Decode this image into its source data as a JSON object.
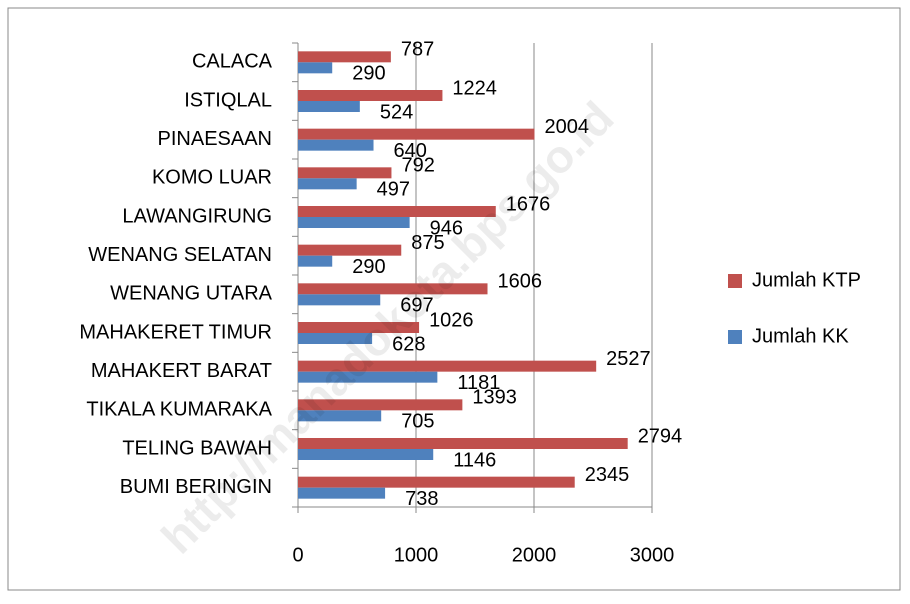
{
  "chart_data": {
    "type": "barh",
    "categories": [
      "CALACA",
      "ISTIQLAL",
      "PINAESAAN",
      "KOMO LUAR",
      "LAWANGIRUNG",
      "WENANG SELATAN",
      "WENANG UTARA",
      "MAHAKERET TIMUR",
      "MAHAKERT BARAT",
      "TIKALA KUMARAKA",
      "TELING BAWAH",
      "BUMI BERINGIN"
    ],
    "series": [
      {
        "name": "Jumlah KTP",
        "color": "#c0504d",
        "values": [
          787,
          1224,
          2004,
          792,
          1676,
          875,
          1606,
          1026,
          2527,
          1393,
          2794,
          2345
        ]
      },
      {
        "name": "Jumlah KK",
        "color": "#4f81bd",
        "values": [
          290,
          524,
          640,
          497,
          946,
          290,
          697,
          628,
          1181,
          705,
          1146,
          738
        ]
      }
    ],
    "xlim": [
      0,
      3000
    ],
    "xticks": [
      0,
      1000,
      2000,
      3000
    ],
    "grid": true,
    "legend": "right",
    "watermark": "http://manadokota.bps.go.id"
  }
}
